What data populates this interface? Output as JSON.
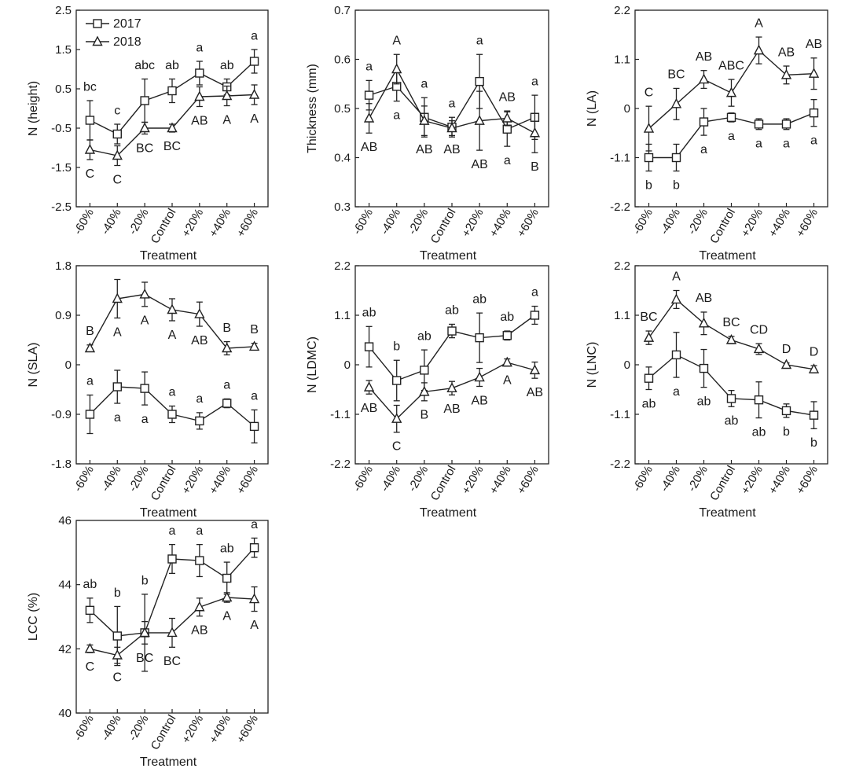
{
  "figure": {
    "series_names": [
      "2017",
      "2018"
    ],
    "x_title": "Treatment",
    "legend_placement": "top-left of first panel"
  },
  "chart_data": [
    {
      "type": "line",
      "title": "",
      "xlabel": "Treatment",
      "ylabel": "N (height)",
      "categories": [
        "-60%",
        "-40%",
        "-20%",
        "Control",
        "+20%",
        "+40%",
        "+60%"
      ],
      "ylim": [
        -2.5,
        2.5
      ],
      "yticks": [
        "-2.5",
        "-1.5",
        "-0.5",
        "0.5",
        "1.5",
        "2.5"
      ],
      "legend": true,
      "series": [
        {
          "name": "2017",
          "marker": "square",
          "values": [
            -0.3,
            -0.65,
            0.2,
            0.45,
            0.9,
            0.55,
            1.2
          ],
          "errors": [
            0.5,
            0.25,
            0.55,
            0.3,
            0.3,
            0.2,
            0.3
          ],
          "letters": [
            "bc",
            "c",
            "abc",
            "ab",
            "a",
            "ab",
            "a"
          ],
          "letter_pos": [
            "above",
            "above",
            "above",
            "above",
            "above",
            "above",
            "above"
          ]
        },
        {
          "name": "2018",
          "marker": "triangle",
          "values": [
            -1.05,
            -1.2,
            -0.5,
            -0.5,
            0.3,
            0.32,
            0.35
          ],
          "errors": [
            0.25,
            0.25,
            0.15,
            0.1,
            0.25,
            0.25,
            0.25
          ],
          "letters": [
            "C",
            "C",
            "BC",
            "BC",
            "AB",
            "A",
            "A"
          ],
          "letter_pos": [
            "below",
            "below",
            "below",
            "below",
            "below",
            "below",
            "below"
          ]
        }
      ]
    },
    {
      "type": "line",
      "title": "",
      "xlabel": "Treatment",
      "ylabel": "Thickness (mm)",
      "categories": [
        "-60%",
        "-40%",
        "-20%",
        "Control",
        "+20%",
        "+40%",
        "+60%"
      ],
      "ylim": [
        0.3,
        0.7
      ],
      "yticks": [
        "0.3",
        "0.4",
        "0.5",
        "0.6",
        "0.7"
      ],
      "legend": false,
      "series": [
        {
          "name": "2017",
          "marker": "square",
          "values": [
            0.527,
            0.545,
            0.482,
            0.462,
            0.555,
            0.458,
            0.482
          ],
          "errors": [
            0.03,
            0.03,
            0.04,
            0.02,
            0.055,
            0.035,
            0.045
          ],
          "letters": [
            "a",
            "a",
            "a",
            "a",
            "a",
            "a",
            "a"
          ],
          "letter_pos": [
            "above",
            "below",
            "above",
            "above",
            "above",
            "below",
            "above"
          ]
        },
        {
          "name": "2018",
          "marker": "triangle",
          "values": [
            0.48,
            0.58,
            0.475,
            0.46,
            0.475,
            0.48,
            0.45
          ],
          "errors": [
            0.03,
            0.03,
            0.03,
            0.015,
            0.06,
            0.015,
            0.04
          ],
          "letters": [
            "AB",
            "A",
            "AB",
            "AB",
            "AB",
            "AB",
            "B"
          ],
          "letter_pos": [
            "below",
            "above",
            "below",
            "below",
            "below",
            "above",
            "below"
          ]
        }
      ]
    },
    {
      "type": "line",
      "title": "",
      "xlabel": "Treatment",
      "ylabel": "N (LA)",
      "categories": [
        "-60%",
        "-40%",
        "-20%",
        "Control",
        "+20%",
        "+40%",
        "+60%"
      ],
      "ylim": [
        -2.2,
        2.2
      ],
      "yticks": [
        "-2.2",
        "-1.1",
        "0",
        "1.1",
        "2.2"
      ],
      "legend": false,
      "series": [
        {
          "name": "2017",
          "marker": "square",
          "values": [
            -1.1,
            -1.1,
            -0.3,
            -0.2,
            -0.35,
            -0.35,
            -0.1
          ],
          "errors": [
            0.3,
            0.3,
            0.3,
            0.1,
            0.12,
            0.12,
            0.3
          ],
          "letters": [
            "b",
            "b",
            "a",
            "a",
            "a",
            "a",
            "a"
          ],
          "letter_pos": [
            "below",
            "below",
            "below",
            "below",
            "below",
            "below",
            "below"
          ]
        },
        {
          "name": "2018",
          "marker": "triangle",
          "values": [
            -0.45,
            0.1,
            0.65,
            0.35,
            1.3,
            0.75,
            0.78
          ],
          "errors": [
            0.5,
            0.35,
            0.2,
            0.3,
            0.3,
            0.2,
            0.35
          ],
          "letters": [
            "C",
            "BC",
            "AB",
            "ABC",
            "A",
            "AB",
            "AB"
          ],
          "letter_pos": [
            "above",
            "above",
            "above",
            "above",
            "above",
            "above",
            "above"
          ]
        }
      ]
    },
    {
      "type": "line",
      "title": "",
      "xlabel": "Treatment",
      "ylabel": "N (SLA)",
      "categories": [
        "-60%",
        "-40%",
        "-20%",
        "Control",
        "+20%",
        "+40%",
        "+60%"
      ],
      "ylim": [
        -1.8,
        1.8
      ],
      "yticks": [
        "-1.8",
        "-0.9",
        "0",
        "0.9",
        "1.8"
      ],
      "legend": false,
      "series": [
        {
          "name": "2017",
          "marker": "square",
          "values": [
            -0.9,
            -0.4,
            -0.43,
            -0.9,
            -1.02,
            -0.7,
            -1.12
          ],
          "errors": [
            0.35,
            0.3,
            0.3,
            0.15,
            0.15,
            0.08,
            0.3
          ],
          "letters": [
            "a",
            "a",
            "a",
            "a",
            "a",
            "a",
            "a"
          ],
          "letter_pos": [
            "above",
            "below",
            "below",
            "above",
            "above",
            "above",
            "above"
          ]
        },
        {
          "name": "2018",
          "marker": "triangle",
          "values": [
            0.3,
            1.2,
            1.28,
            1.0,
            0.92,
            0.3,
            0.33
          ],
          "errors": [
            0.06,
            0.35,
            0.22,
            0.2,
            0.22,
            0.12,
            0.06
          ],
          "letters": [
            "B",
            "A",
            "A",
            "A",
            "AB",
            "B",
            "B"
          ],
          "letter_pos": [
            "above",
            "below",
            "below",
            "below",
            "below",
            "above",
            "above"
          ]
        }
      ]
    },
    {
      "type": "line",
      "title": "",
      "xlabel": "Treatment",
      "ylabel": "N (LDMC)",
      "categories": [
        "-60%",
        "-40%",
        "-20%",
        "Control",
        "+20%",
        "+40%",
        "+60%"
      ],
      "ylim": [
        -2.2,
        2.2
      ],
      "yticks": [
        "-2.2",
        "-1.1",
        "0",
        "1.1",
        "2.2"
      ],
      "legend": false,
      "series": [
        {
          "name": "2017",
          "marker": "square",
          "values": [
            0.4,
            -0.35,
            -0.12,
            0.75,
            0.6,
            0.65,
            1.1
          ],
          "errors": [
            0.45,
            0.45,
            0.45,
            0.15,
            0.55,
            0.1,
            0.2
          ],
          "letters": [
            "ab",
            "b",
            "ab",
            "ab",
            "ab",
            "ab",
            "a"
          ],
          "letter_pos": [
            "above",
            "above",
            "above",
            "above",
            "above",
            "above",
            "above"
          ]
        },
        {
          "name": "2018",
          "marker": "triangle",
          "values": [
            -0.5,
            -1.2,
            -0.6,
            -0.52,
            -0.28,
            0.05,
            -0.12
          ],
          "errors": [
            0.15,
            0.3,
            0.2,
            0.15,
            0.2,
            0.08,
            0.18
          ],
          "letters": [
            "AB",
            "C",
            "B",
            "AB",
            "AB",
            "A",
            "AB"
          ],
          "letter_pos": [
            "below",
            "below",
            "below",
            "below",
            "below",
            "below",
            "below"
          ]
        }
      ]
    },
    {
      "type": "line",
      "title": "",
      "xlabel": "Treatment",
      "ylabel": "N (LNC)",
      "categories": [
        "-60%",
        "-40%",
        "-20%",
        "Control",
        "+20%",
        "+40%",
        "+60%"
      ],
      "ylim": [
        -2.2,
        2.2
      ],
      "yticks": [
        "-2.2",
        "-1.1",
        "0",
        "1.1",
        "2.2"
      ],
      "legend": false,
      "series": [
        {
          "name": "2017",
          "marker": "square",
          "values": [
            -0.3,
            0.22,
            -0.08,
            -0.75,
            -0.78,
            -1.02,
            -1.12
          ],
          "errors": [
            0.25,
            0.5,
            0.42,
            0.18,
            0.4,
            0.15,
            0.3
          ],
          "letters": [
            "ab",
            "a",
            "ab",
            "ab",
            "ab",
            "b",
            "b"
          ],
          "letter_pos": [
            "below",
            "below",
            "below",
            "below",
            "below",
            "below",
            "below"
          ]
        },
        {
          "name": "2018",
          "marker": "triangle",
          "values": [
            0.6,
            1.45,
            0.92,
            0.55,
            0.35,
            0.0,
            -0.1
          ],
          "errors": [
            0.15,
            0.2,
            0.25,
            0.08,
            0.12,
            0.04,
            0.08
          ],
          "letters": [
            "BC",
            "A",
            "AB",
            "BC",
            "CD",
            "D",
            "D"
          ],
          "letter_pos": [
            "above",
            "above",
            "above",
            "above",
            "above",
            "above",
            "above"
          ]
        }
      ]
    },
    {
      "type": "line",
      "title": "",
      "xlabel": "Treatment",
      "ylabel": "LCC (%)",
      "categories": [
        "-60%",
        "-40%",
        "-20%",
        "Control",
        "+20%",
        "+40%",
        "+60%"
      ],
      "ylim": [
        40,
        46
      ],
      "yticks": [
        "40",
        "42",
        "44",
        "46"
      ],
      "legend": false,
      "series": [
        {
          "name": "2017",
          "marker": "square",
          "values": [
            43.2,
            42.4,
            42.5,
            44.8,
            44.75,
            44.2,
            45.15
          ],
          "errors": [
            0.38,
            0.92,
            1.2,
            0.45,
            0.5,
            0.5,
            0.3
          ],
          "letters": [
            "ab",
            "b",
            "b",
            "a",
            "a",
            "ab",
            "a"
          ],
          "letter_pos": [
            "above",
            "above",
            "above",
            "above",
            "above",
            "above",
            "above"
          ]
        },
        {
          "name": "2018",
          "marker": "triangle",
          "values": [
            42.0,
            41.8,
            42.5,
            42.5,
            43.3,
            43.6,
            43.55
          ],
          "errors": [
            0.12,
            0.25,
            0.35,
            0.45,
            0.28,
            0.15,
            0.38
          ],
          "letters": [
            "C",
            "C",
            "BC",
            "BC",
            "AB",
            "A",
            "A"
          ],
          "letter_pos": [
            "below",
            "below",
            "below",
            "below",
            "below",
            "below",
            "below"
          ]
        }
      ]
    }
  ]
}
